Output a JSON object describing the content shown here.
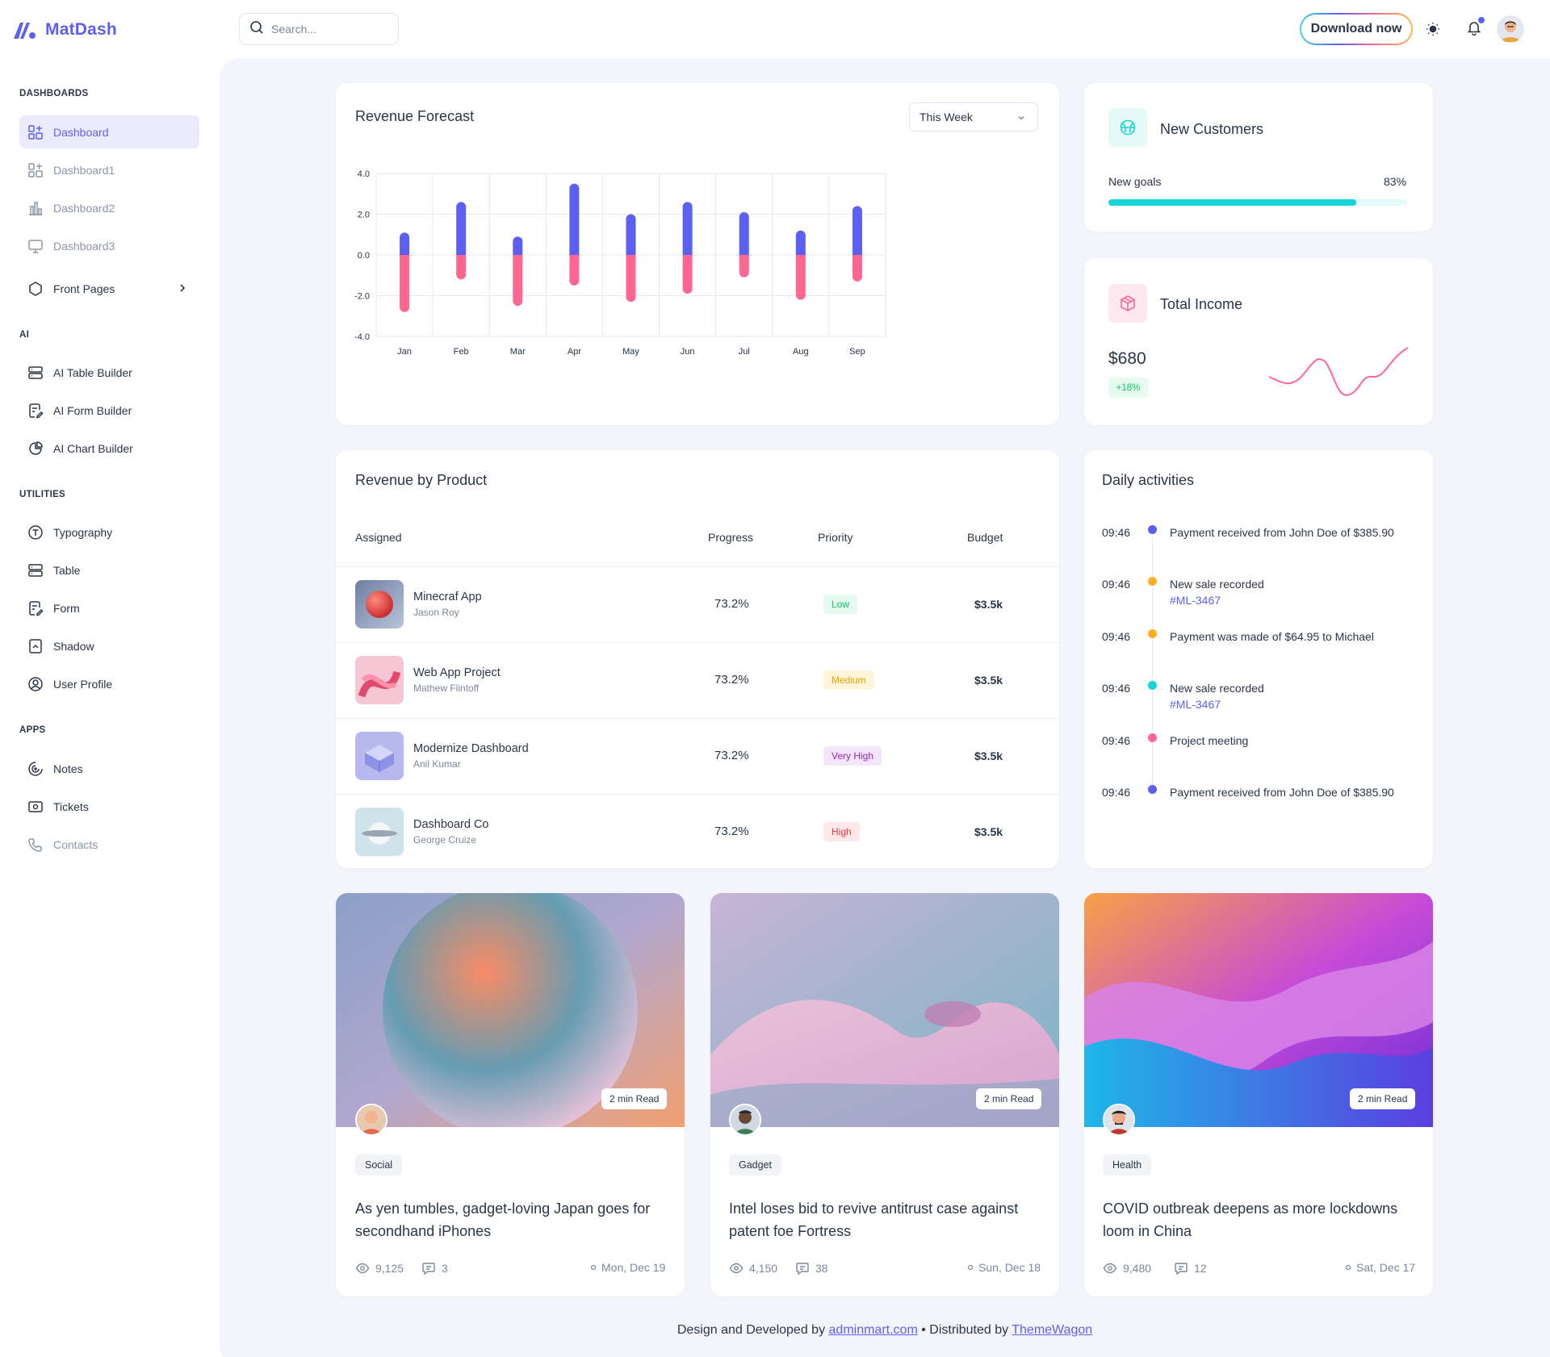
{
  "brand": {
    "name": "MatDash"
  },
  "search": {
    "placeholder": "Search..."
  },
  "topbar": {
    "download_label": "Download now"
  },
  "sidebar": {
    "sections": [
      {
        "heading": "DASHBOARDS",
        "items": [
          {
            "label": "Dashboard",
            "icon": "layout-dashboard-icon",
            "active": true
          },
          {
            "label": "Dashboard1",
            "icon": "layout-dashboard-icon",
            "muted": true
          },
          {
            "label": "Dashboard2",
            "icon": "chart-bars-icon",
            "muted": true
          },
          {
            "label": "Dashboard3",
            "icon": "device-desktop-icon",
            "muted": true
          },
          {
            "label": "Front Pages",
            "icon": "hexagon-icon",
            "has_chevron": true
          }
        ]
      },
      {
        "heading": "AI",
        "items": [
          {
            "label": "AI Table Builder",
            "icon": "server-icon"
          },
          {
            "label": "AI Form Builder",
            "icon": "file-edit-icon"
          },
          {
            "label": "AI Chart Builder",
            "icon": "pie-chart-icon"
          }
        ]
      },
      {
        "heading": "UTILITIES",
        "items": [
          {
            "label": "Typography",
            "icon": "typography-icon"
          },
          {
            "label": "Table",
            "icon": "server-icon"
          },
          {
            "label": "Form",
            "icon": "file-edit-icon"
          },
          {
            "label": "Shadow",
            "icon": "file-shadow-icon"
          },
          {
            "label": "User Profile",
            "icon": "user-circle-icon"
          }
        ]
      },
      {
        "heading": "APPS",
        "items": [
          {
            "label": "Notes",
            "icon": "notes-icon"
          },
          {
            "label": "Tickets",
            "icon": "ticket-icon"
          },
          {
            "label": "Contacts",
            "icon": "phone-icon",
            "muted": true
          }
        ]
      }
    ]
  },
  "revenue_forecast": {
    "title": "Revenue Forecast",
    "range_select": "This Week"
  },
  "chart_data": {
    "type": "bar",
    "title": "Revenue Forecast",
    "categories": [
      "Jan",
      "Feb",
      "Mar",
      "Apr",
      "May",
      "Jun",
      "Jul",
      "Aug",
      "Sep"
    ],
    "series": [
      {
        "values": [
          1.1,
          2.6,
          0.9,
          3.5,
          2.0,
          2.6,
          2.1,
          1.2,
          2.4
        ],
        "color": "#5d5ff2"
      },
      {
        "values": [
          -2.8,
          -1.2,
          -2.5,
          -1.5,
          -2.3,
          -1.9,
          -1.1,
          -2.2,
          -1.3
        ],
        "color": "#ff6692"
      }
    ],
    "ylim": [
      -4,
      4
    ],
    "yticks": [
      "4.0",
      "2.0",
      "0.0",
      "-2.0",
      "-4.0"
    ],
    "grid": true
  },
  "new_customers": {
    "title": "New Customers",
    "goal_label": "New goals",
    "goal_value": "83%",
    "goal_fraction": 0.83,
    "accent": "#17d4d6"
  },
  "total_income": {
    "title": "Total Income",
    "value": "$680",
    "change": "+18%",
    "accent": "#ff6692"
  },
  "revenue_by_product": {
    "title": "Revenue by Product",
    "columns": [
      "Assigned",
      "Progress",
      "Priority",
      "Budget"
    ],
    "rows": [
      {
        "name": "Minecraf App",
        "person": "Jason Roy",
        "progress": "73.2%",
        "priority": "Low",
        "budget": "$3.5k"
      },
      {
        "name": "Web App Project",
        "person": "Mathew Flintoff",
        "progress": "73.2%",
        "priority": "Medium",
        "budget": "$3.5k"
      },
      {
        "name": "Modernize Dashboard",
        "person": "Anil Kumar",
        "progress": "73.2%",
        "priority": "Very High",
        "budget": "$3.5k"
      },
      {
        "name": "Dashboard Co",
        "person": "George Cruize",
        "progress": "73.2%",
        "priority": "High",
        "budget": "$3.5k"
      }
    ]
  },
  "daily_activities": {
    "title": "Daily activities",
    "items": [
      {
        "time": "09:46",
        "text": "Payment received from John Doe of $385.90",
        "color": "#5d5ff2"
      },
      {
        "time": "09:46",
        "text": "New sale recorded",
        "link": "#ML-3467",
        "color": "#ffae1f"
      },
      {
        "time": "09:46",
        "text": "Payment was made of $64.95 to Michael",
        "color": "#ffae1f"
      },
      {
        "time": "09:46",
        "text": "New sale recorded",
        "link": "#ML-3467",
        "color": "#17d4d6"
      },
      {
        "time": "09:46",
        "text": "Project meeting",
        "color": "#ff6692"
      },
      {
        "time": "09:46",
        "text": "Payment received from John Doe of $385.90",
        "color": "#5d5ff2"
      }
    ]
  },
  "blog_posts": [
    {
      "read_time": "2 min Read",
      "tag": "Social",
      "title": "As yen tumbles, gadget-loving Japan goes for secondhand iPhones",
      "views": "9,125",
      "comments": "3",
      "date": "Mon, Dec 19"
    },
    {
      "read_time": "2 min Read",
      "tag": "Gadget",
      "title": "Intel loses bid to revive antitrust case against patent foe Fortress",
      "views": "4,150",
      "comments": "38",
      "date": "Sun, Dec 18"
    },
    {
      "read_time": "2 min Read",
      "tag": "Health",
      "title": "COVID outbreak deepens as more lockdowns loom in China",
      "views": "9,480",
      "comments": "12",
      "date": "Sat, Dec 17"
    }
  ],
  "footer": {
    "prefix": "Design and Developed by",
    "link1": "adminmart.com",
    "separator": "• Distributed by",
    "link2": "ThemeWagon"
  }
}
